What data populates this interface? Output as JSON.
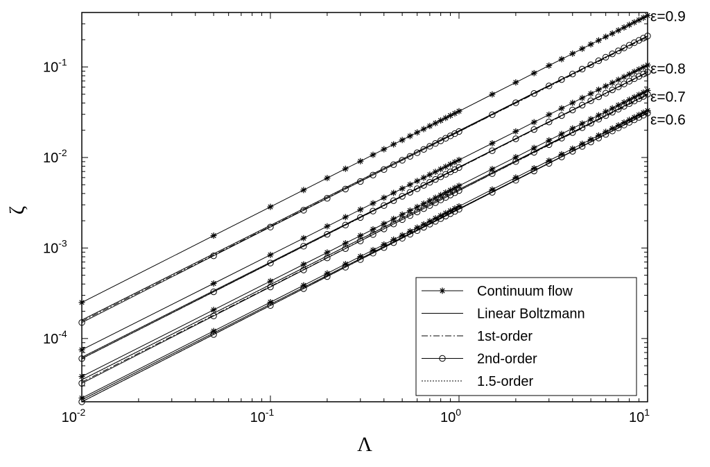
{
  "chart_data": {
    "type": "line",
    "xlabel": "Λ",
    "ylabel": "ζ",
    "xscale": "log",
    "yscale": "log",
    "xlim": [
      0.01,
      10
    ],
    "ylim": [
      2e-05,
      0.4
    ],
    "grid": false,
    "x_ticks": [
      {
        "base": "10",
        "exp": "-2",
        "value": 0.01
      },
      {
        "base": "10",
        "exp": "-1",
        "value": 0.1
      },
      {
        "base": "10",
        "exp": "0",
        "value": 1
      },
      {
        "base": "10",
        "exp": "1",
        "value": 10
      }
    ],
    "y_ticks": [
      {
        "base": "10",
        "exp": "-4",
        "value": 0.0001
      },
      {
        "base": "10",
        "exp": "-3",
        "value": 0.001
      },
      {
        "base": "10",
        "exp": "-2",
        "value": 0.01
      },
      {
        "base": "10",
        "exp": "-1",
        "value": 0.1
      }
    ],
    "legend": {
      "position": "bottom-right",
      "entries": [
        {
          "label": "Continuum flow",
          "style": "solid",
          "marker": "star"
        },
        {
          "label": "Linear Boltzmann",
          "style": "solid",
          "marker": "none"
        },
        {
          "label": "1st-order",
          "style": "dashdot",
          "marker": "none"
        },
        {
          "label": "2nd-order",
          "style": "solid",
          "marker": "circle"
        },
        {
          "label": "1.5-order",
          "style": "dotted",
          "marker": "none"
        }
      ]
    },
    "x": [
      0.01,
      0.05,
      0.1,
      0.15,
      0.2,
      0.25,
      0.3,
      0.35,
      0.4,
      0.45,
      0.5,
      0.55,
      0.6,
      0.65,
      0.7,
      0.75,
      0.8,
      0.85,
      0.9,
      0.95,
      1.0,
      1.5,
      2.0,
      2.5,
      3.0,
      3.5,
      4.0,
      4.5,
      5.0,
      5.5,
      6.0,
      6.5,
      7.0,
      7.5,
      8.0,
      8.5,
      9.0,
      9.5,
      10.0
    ],
    "groups": [
      {
        "epsilon_label": "ε=0.9",
        "continuum": [
          0.00025,
          0.37
        ],
        "boltzmann": [
          0.00016,
          0.22
        ],
        "first_order": [
          0.000155,
          0.215
        ],
        "second_order": [
          0.00015,
          0.22
        ],
        "one_half_order": [
          0.00016,
          0.22
        ]
      },
      {
        "epsilon_label": "ε=0.8",
        "continuum": [
          7.5e-05,
          0.105
        ],
        "boltzmann": [
          6.2e-05,
          0.088
        ],
        "first_order": [
          6e-05,
          0.087
        ],
        "second_order": [
          6e-05,
          0.088
        ],
        "one_half_order": [
          6.2e-05,
          0.088
        ]
      },
      {
        "epsilon_label": "ε=0.7",
        "continuum": [
          3.8e-05,
          0.055
        ],
        "boltzmann": [
          3.5e-05,
          0.05
        ],
        "first_order": [
          3.3e-05,
          0.049
        ],
        "second_order": [
          3.2e-05,
          0.05
        ],
        "one_half_order": [
          3.5e-05,
          0.05
        ]
      },
      {
        "epsilon_label": "ε=0.6",
        "continuum": [
          2.2e-05,
          0.033
        ],
        "boltzmann": [
          2.1e-05,
          0.031
        ],
        "first_order": [
          2e-05,
          0.031
        ],
        "second_order": [
          2e-05,
          0.031
        ],
        "one_half_order": [
          2.1e-05,
          0.031
        ]
      }
    ]
  }
}
